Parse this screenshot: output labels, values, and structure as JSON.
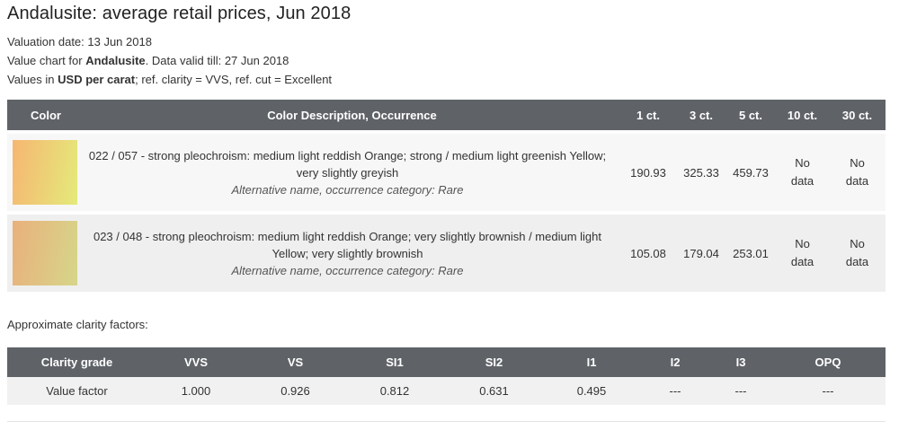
{
  "title": "Andalusite: average retail prices, Jun 2018",
  "valuation": "Valuation date: 13 Jun 2018",
  "valid": {
    "prefix": "Value chart for ",
    "gem": "Andalusite",
    "suffix": ". Data valid till: 27 Jun 2018"
  },
  "units": {
    "prefix": "Values in ",
    "unit": "USD per carat",
    "suffix": "; ref. clarity = VVS, ref. cut = Excellent"
  },
  "price_table": {
    "headers": [
      "Color",
      "Color Description, Occurrence",
      "1 ct.",
      "3 ct.",
      "5 ct.",
      "10 ct.",
      "30 ct."
    ],
    "rows": [
      {
        "swatch_from": "#f6b672",
        "swatch_to": "#e4ea7a",
        "desc": "022 / 057 - strong pleochroism: medium light reddish Orange; strong / medium light greenish Yellow; very slightly greyish",
        "alt": "Alternative name, occurrence category: Rare",
        "p1": "190.93",
        "p3": "325.33",
        "p5": "459.73",
        "p10": "No data",
        "p30": "No data"
      },
      {
        "swatch_from": "#e9b07c",
        "swatch_to": "#d6d68a",
        "desc": "023 / 048 - strong pleochroism: medium light reddish Orange; very slightly brownish / medium light Yellow; very slightly brownish",
        "alt": "Alternative name, occurrence category: Rare",
        "p1": "105.08",
        "p3": "179.04",
        "p5": "253.01",
        "p10": "No data",
        "p30": "No data"
      }
    ]
  },
  "clarity": {
    "label": "Approximate clarity factors:",
    "headers": [
      "Clarity grade",
      "VVS",
      "VS",
      "SI1",
      "SI2",
      "I1",
      "I2",
      "I3",
      "OPQ"
    ],
    "row": [
      "Value factor",
      "1.000",
      "0.926",
      "0.812",
      "0.631",
      "0.495",
      "---",
      "---",
      "---"
    ]
  }
}
